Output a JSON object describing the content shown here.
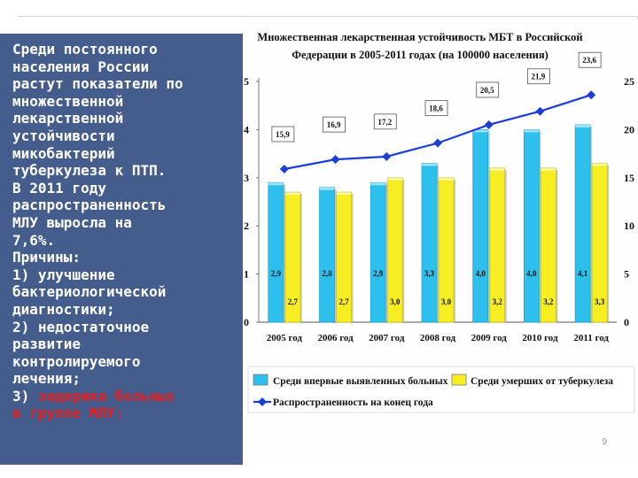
{
  "slide": {
    "text_lines": [
      {
        "text": "Среди постоянного",
        "color": "#ffffff"
      },
      {
        "text": "населения России",
        "color": "#ffffff"
      },
      {
        "text": "растут показатели по",
        "color": "#ffffff"
      },
      {
        "text": "множественной",
        "color": "#ffffff"
      },
      {
        "text": "лекарственной",
        "color": "#ffffff"
      },
      {
        "text": "устойчивости",
        "color": "#ffffff"
      },
      {
        "text": "микобактерий",
        "color": "#ffffff"
      },
      {
        "text": "туберкулеза к ПТП.",
        "color": "#ffffff"
      },
      {
        "text": "В 2011 году",
        "color": "#ffffff"
      },
      {
        "text": "распространенность",
        "color": "#ffffff"
      },
      {
        "text": "МЛУ выросла на",
        "color": "#ffffff"
      },
      {
        "text": "7,6%.",
        "color": "#ffffff"
      },
      {
        "text": "Причины:",
        "color": "#ffffff"
      },
      {
        "text": "1) улучшение",
        "color": "#ffffff"
      },
      {
        "text": "бактериологической",
        "color": "#ffffff"
      },
      {
        "text": "диагностики;",
        "color": "#ffffff"
      },
      {
        "text": "2) недостаточное",
        "color": "#ffffff"
      },
      {
        "text": "развитие",
        "color": "#ffffff"
      },
      {
        "text": "контролируемого",
        "color": "#ffffff"
      },
      {
        "text": "лечения;",
        "color": "#ffffff"
      },
      {
        "text": "3) ",
        "color": "#ffffff",
        "cont": [
          {
            "text": "задержка больных",
            "color": "#e02020"
          }
        ]
      },
      {
        "text": "в группе МЛУ:",
        "color": "#e02020"
      }
    ],
    "page_number": "9"
  },
  "chart_data": {
    "type": "bar",
    "title": [
      "Множественная лекарственная устойчивость МБТ в Российской",
      "Федерации в 2005-2011 годах (на 100000 населения)"
    ],
    "categories": [
      "2005 год",
      "2006 год",
      "2007 год",
      "2008 год",
      "2009 год",
      "2010 год",
      "2011 год"
    ],
    "left_axis": {
      "ylim": [
        0,
        5
      ],
      "ticks": [
        "0",
        "1",
        "2",
        "3",
        "4",
        "5"
      ]
    },
    "right_axis": {
      "ylim": [
        0,
        25
      ],
      "ticks": [
        "0",
        "5",
        "10",
        "15",
        "20",
        "25"
      ]
    },
    "series": [
      {
        "name": "Среди впервые выявленных больных",
        "type": "bar",
        "axis": "left",
        "color": "#2ec0ec",
        "values": [
          2.9,
          2.8,
          2.9,
          3.3,
          4.0,
          4.0,
          4.1
        ],
        "labels": [
          "2,9",
          "2,8",
          "2,9",
          "3,3",
          "4,0",
          "4,0",
          "4,1"
        ]
      },
      {
        "name": "Среди умерших от туберкулеза",
        "type": "bar",
        "axis": "left",
        "color": "#f6ee22",
        "values": [
          2.7,
          2.7,
          3.0,
          3.0,
          3.2,
          3.2,
          3.3
        ],
        "labels": [
          "2,7",
          "2,7",
          "3,0",
          "3,0",
          "3,2",
          "3,2",
          "3,3"
        ]
      },
      {
        "name": "Распространенность на конец года",
        "type": "line",
        "axis": "right",
        "color": "#1b3ed8",
        "values": [
          15.9,
          16.9,
          17.2,
          18.6,
          20.5,
          21.9,
          23.6
        ],
        "labels": [
          "15,9",
          "16,9",
          "17,2",
          "18,6",
          "20,5",
          "21,9",
          "23,6"
        ]
      }
    ],
    "grid": false,
    "legend_position": "bottom"
  }
}
